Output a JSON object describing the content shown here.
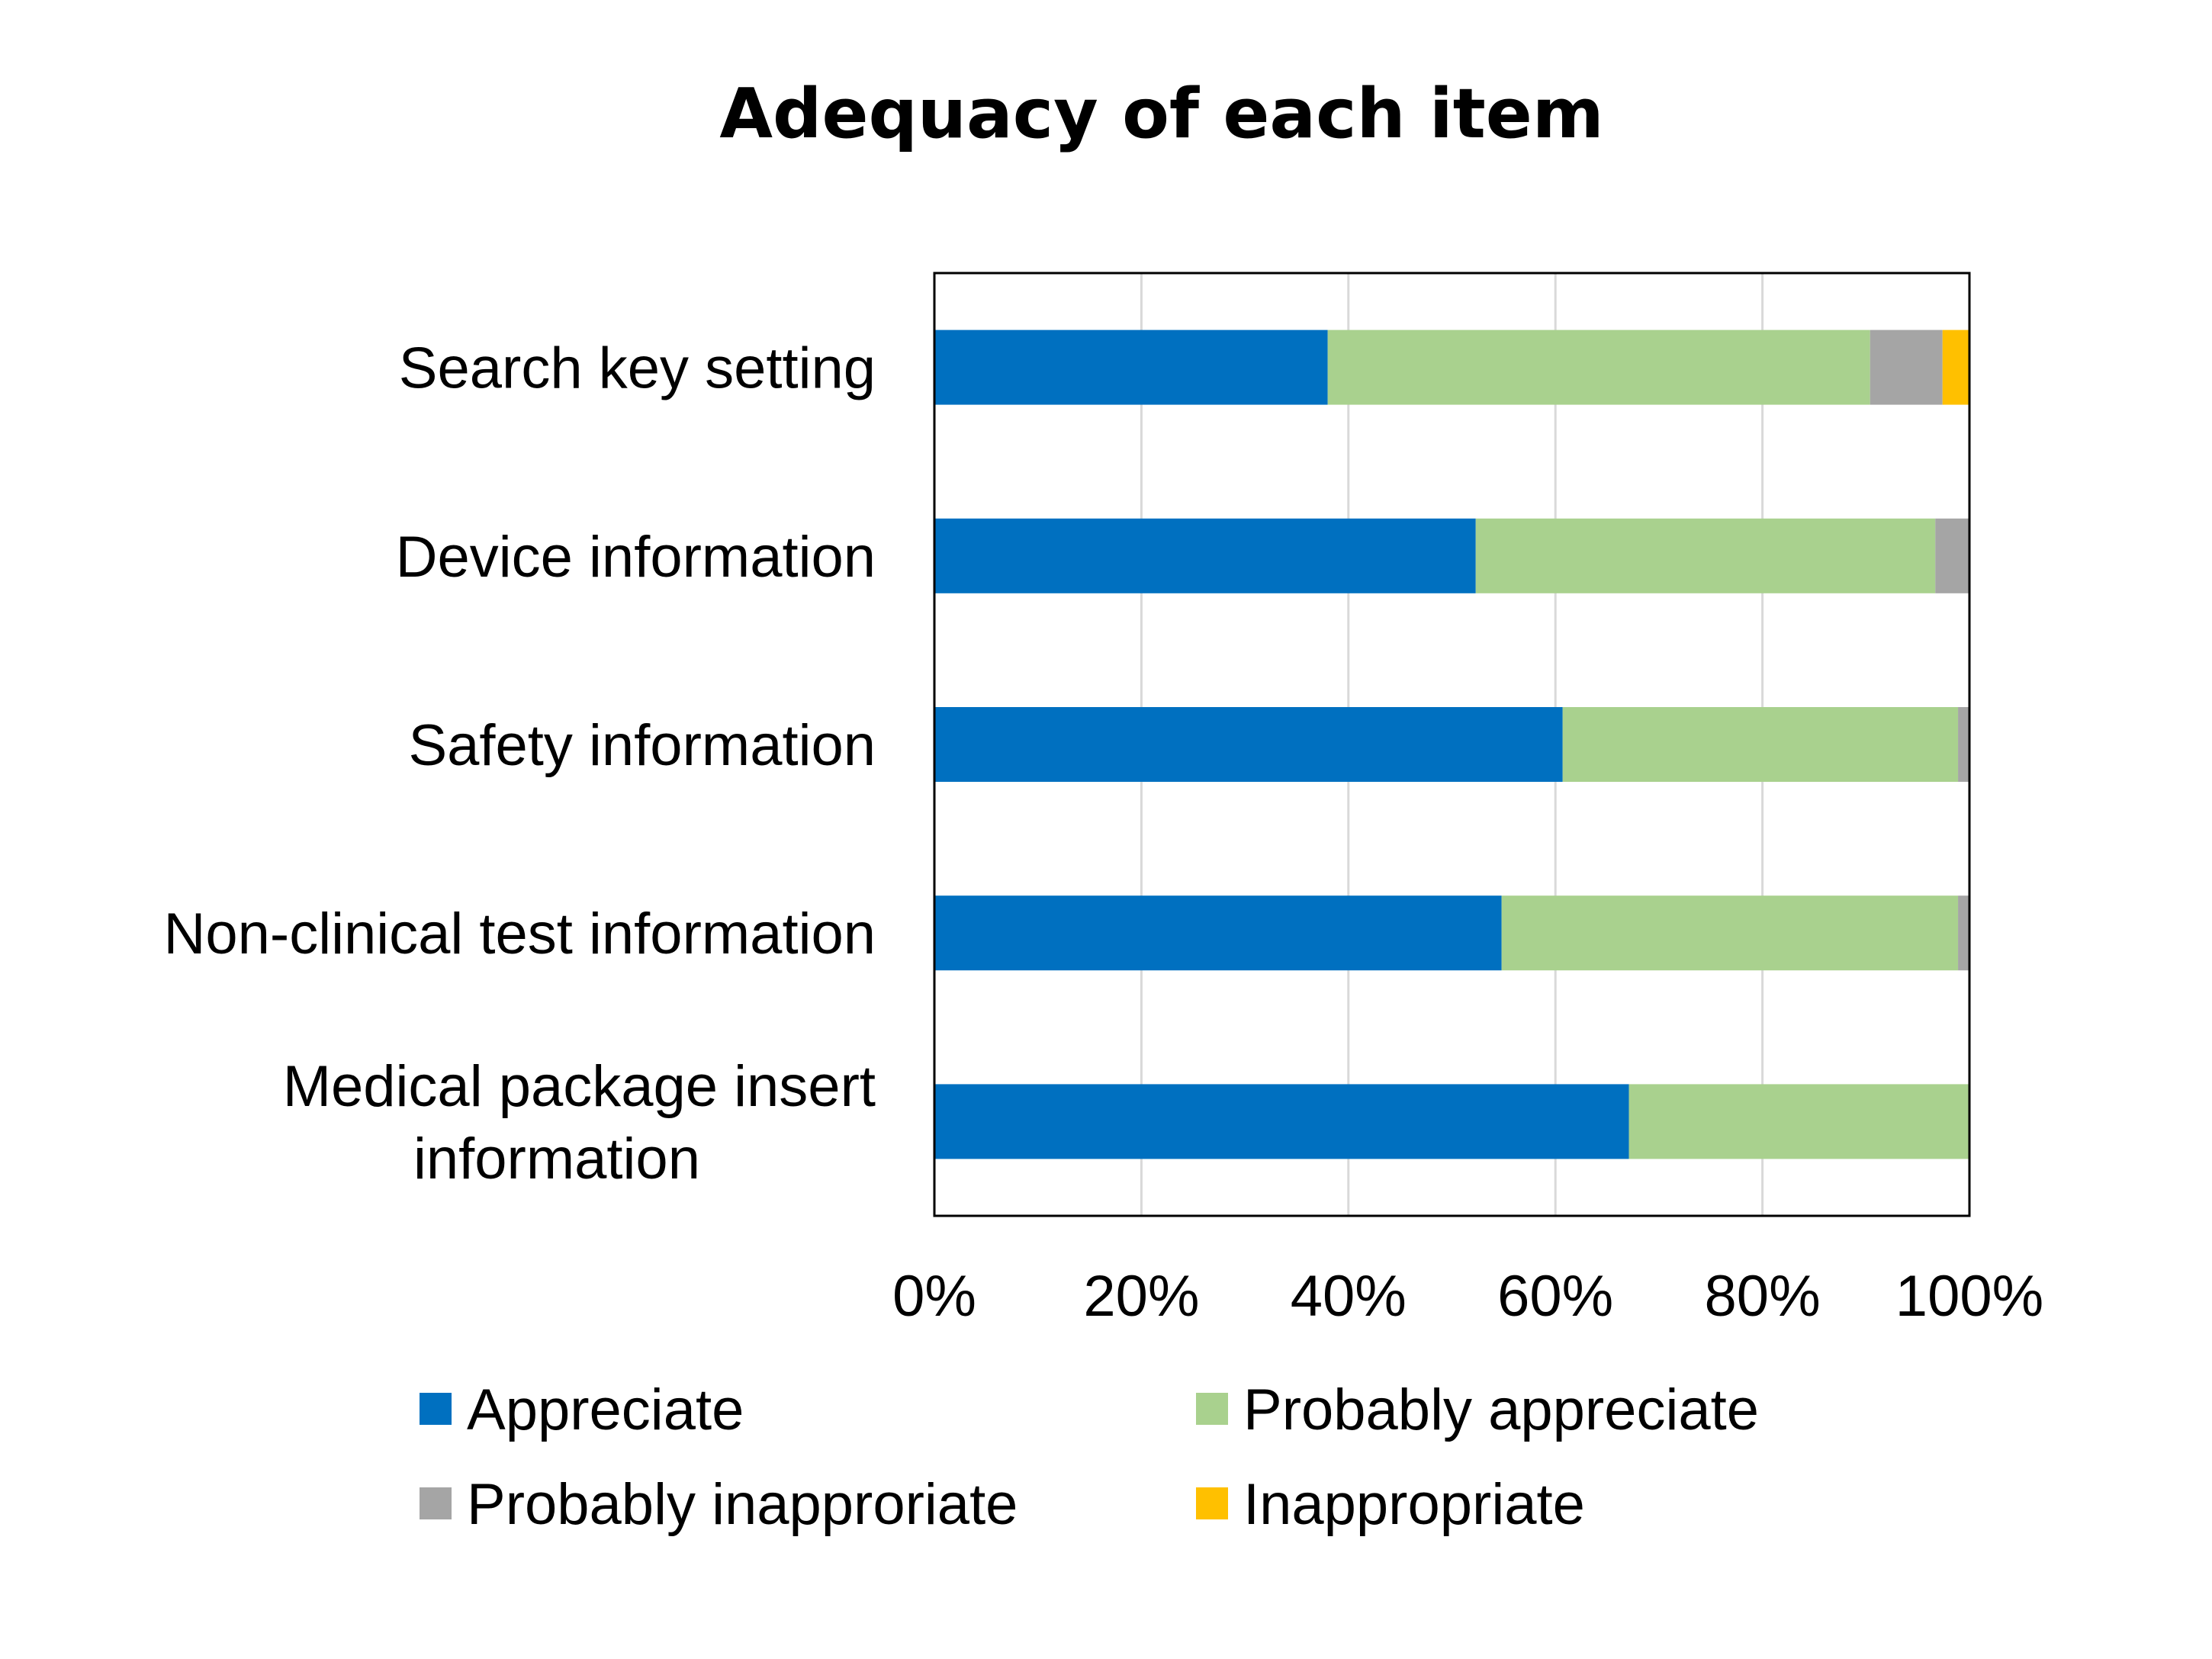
{
  "chart_data": {
    "type": "bar",
    "orientation": "horizontal",
    "stacked": "percent",
    "title": "Adequacy of each item",
    "categories": [
      [
        "Search key setting"
      ],
      [
        "Device information"
      ],
      [
        "Safety information"
      ],
      [
        "Non-clinical test information"
      ],
      [
        "Medical package insert",
        "information"
      ]
    ],
    "series": [
      {
        "name": "Appreciate",
        "color": "#0070C0",
        "values": [
          38,
          52.3,
          60.7,
          54.8,
          67.1
        ]
      },
      {
        "name": "Probably appreciate",
        "color": "#A9D18E",
        "values": [
          52.4,
          44.4,
          38.2,
          44.1,
          32.9
        ]
      },
      {
        "name": "Probably inapproriate",
        "color": "#A5A5A5",
        "values": [
          7,
          3.3,
          1.1,
          1.1,
          0
        ]
      },
      {
        "name": "Inappropriate",
        "color": "#FFC000",
        "values": [
          2.6,
          0,
          0,
          0,
          0
        ]
      }
    ],
    "xlim": [
      0,
      100
    ],
    "xticks": [
      "0%",
      "20%",
      "40%",
      "60%",
      "80%",
      "100%"
    ],
    "grid": true,
    "legend_position": "bottom"
  }
}
